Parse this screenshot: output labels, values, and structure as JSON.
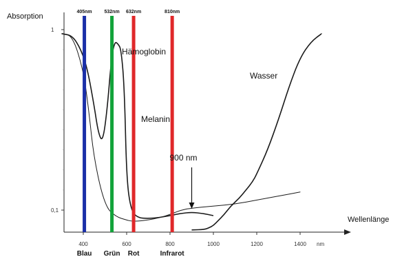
{
  "chart_data": {
    "type": "line",
    "title": "",
    "ylabel": "Absorption",
    "xlabel": "Wellenlänge",
    "xunit": "nm",
    "xlim": [
      300,
      1500
    ],
    "y_ticks": [
      {
        "value": 0.1,
        "label": "0,1"
      },
      {
        "value": 1,
        "label": "1"
      }
    ],
    "x_ticks": [
      {
        "value": 400,
        "label": "400"
      },
      {
        "value": 600,
        "label": "600"
      },
      {
        "value": 800,
        "label": "800"
      },
      {
        "value": 1000,
        "label": "1000"
      },
      {
        "value": 1200,
        "label": "1200"
      },
      {
        "value": 1400,
        "label": "1400"
      }
    ],
    "x_unit_label": "nm",
    "series": [
      {
        "name": "Hämoglobin",
        "x": [
          300,
          350,
          390,
          420,
          450,
          470,
          490,
          510,
          530,
          545,
          560,
          575,
          590,
          600,
          620,
          650,
          700,
          750,
          800,
          850,
          900,
          950,
          1000
        ],
        "y": [
          0.98,
          0.97,
          0.9,
          0.8,
          0.62,
          0.48,
          0.44,
          0.6,
          0.86,
          0.94,
          0.93,
          0.9,
          0.7,
          0.25,
          0.1,
          0.065,
          0.062,
          0.066,
          0.075,
          0.085,
          0.09,
          0.085,
          0.075
        ]
      },
      {
        "name": "Melanin",
        "x": [
          300,
          350,
          400,
          425,
          450,
          500,
          550,
          600,
          620,
          650,
          700,
          750,
          800,
          850,
          900,
          1000,
          1100,
          1200,
          1300,
          1400
        ],
        "y": [
          0.98,
          0.97,
          0.8,
          0.6,
          0.35,
          0.12,
          0.07,
          0.055,
          0.05,
          0.05,
          0.055,
          0.065,
          0.08,
          0.1,
          0.11,
          0.12,
          0.13,
          0.15,
          0.17,
          0.19
        ]
      },
      {
        "name": "Wasser",
        "x": [
          900,
          960,
          980,
          1000,
          1020,
          1050,
          1080,
          1120,
          1150,
          1180,
          1200,
          1250,
          1300,
          1350,
          1400,
          1450,
          1500
        ],
        "y": [
          0.01,
          0.012,
          0.02,
          0.03,
          0.05,
          0.08,
          0.12,
          0.16,
          0.2,
          0.24,
          0.28,
          0.4,
          0.55,
          0.72,
          0.86,
          0.94,
          0.98
        ]
      }
    ],
    "lasers": [
      {
        "wavelength": 405,
        "label": "405nm",
        "band": "Blau",
        "color": "#1a2fa8"
      },
      {
        "wavelength": 532,
        "label": "532nm",
        "band": "Grün",
        "color": "#12a33a"
      },
      {
        "wavelength": 632,
        "label": "632nm",
        "band": "Rot",
        "color": "#e0282a"
      },
      {
        "wavelength": 810,
        "label": "810nm",
        "band": "Infrarot",
        "color": "#e0282a"
      }
    ],
    "annotation": {
      "text": "900 nm",
      "x": 900
    }
  }
}
